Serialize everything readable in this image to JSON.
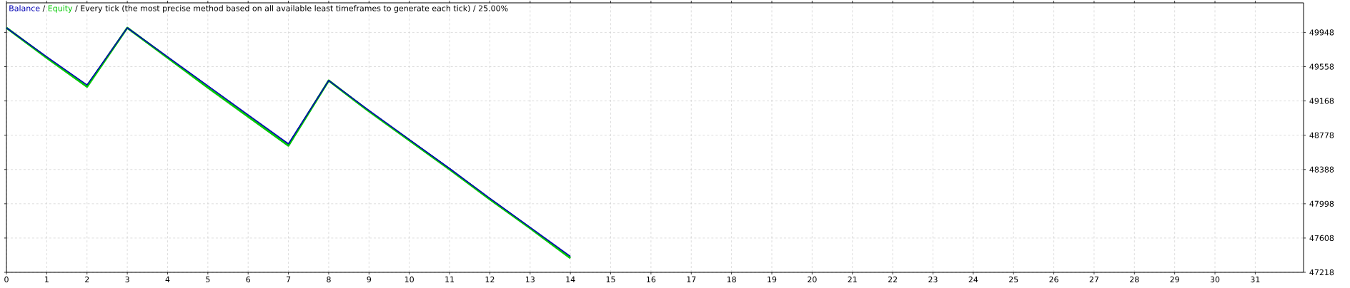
{
  "chart_data": {
    "type": "line",
    "annotations": [
      "/"
    ],
    "title": "/ Every tick (the most precise method based on all available least timeframes to generate each tick) / 25.00%",
    "x": [
      0,
      1,
      2,
      3,
      4,
      5,
      6,
      7,
      8,
      9,
      10,
      11,
      12,
      13,
      14
    ],
    "series": [
      {
        "name": "Balance",
        "color": "#0000b4",
        "values": [
          50000,
          49670,
          49350,
          50000,
          49670,
          49340,
          49010,
          48680,
          49400,
          49060,
          48730,
          48400,
          48060,
          47730,
          47400
        ]
      },
      {
        "name": "Equity",
        "color": "#00c800",
        "values": [
          50000,
          49660,
          49330,
          50000,
          49660,
          49320,
          48990,
          48660,
          49400,
          49050,
          48720,
          48390,
          48050,
          47720,
          47380
        ]
      }
    ],
    "xlim": [
      0,
      32.2
    ],
    "xticks": [
      0,
      1,
      2,
      3,
      4,
      5,
      6,
      7,
      8,
      9,
      10,
      11,
      12,
      13,
      14,
      15,
      16,
      17,
      18,
      19,
      20,
      21,
      22,
      23,
      24,
      25,
      26,
      27,
      28,
      29,
      30,
      31
    ],
    "ylim": [
      47218,
      50284
    ],
    "yticks": [
      47218,
      47608,
      47998,
      48388,
      48778,
      49168,
      49558,
      49948
    ],
    "grid": true,
    "legend": "top left",
    "marker": "none",
    "line_style": "solid"
  }
}
